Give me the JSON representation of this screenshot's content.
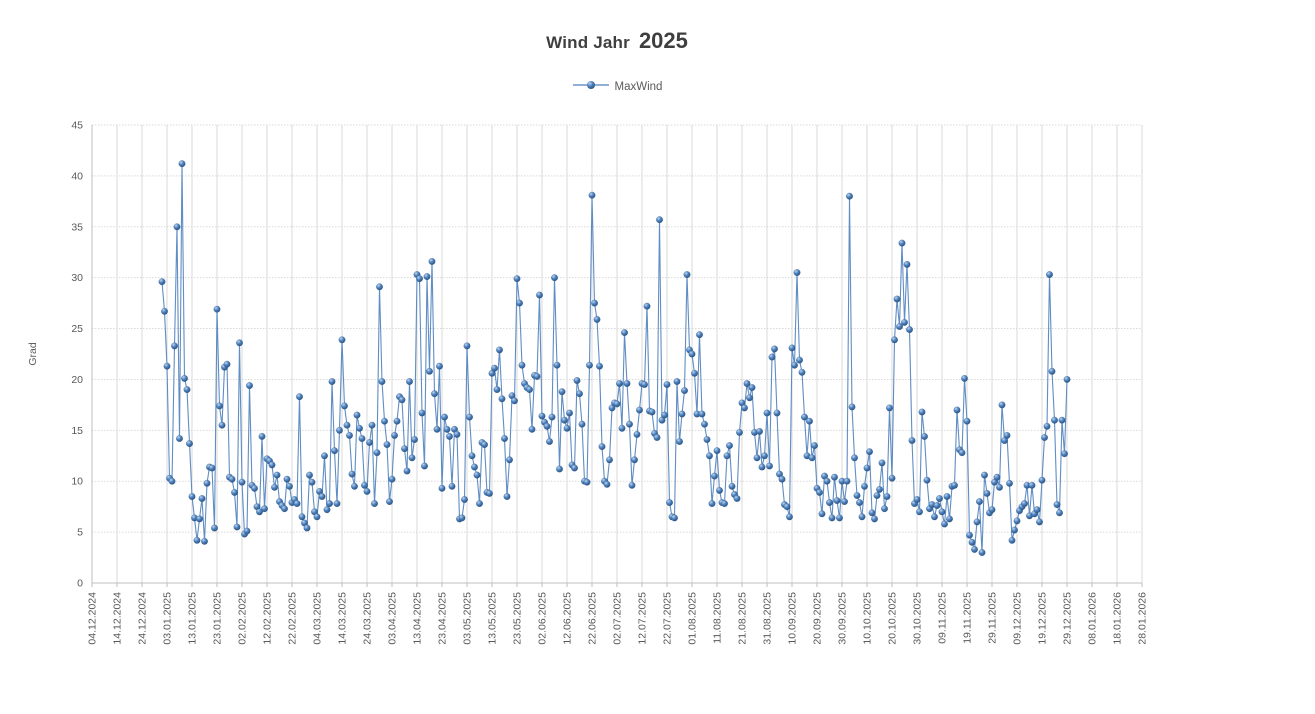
{
  "title": {
    "part1": "Wind Jahr",
    "year": "2025"
  },
  "legend": {
    "label": "MaxWind"
  },
  "y_axis": {
    "label": "Grad"
  },
  "chart_data": {
    "type": "line",
    "title": "Wind Jahr 2025",
    "series_name": "MaxWind",
    "xlabel": "",
    "ylabel": "Grad",
    "ylim": [
      0,
      45
    ],
    "y_tick_step": 5,
    "grid": true,
    "legend_position": "top",
    "marker_style": "3d-sphere",
    "x_start_date": "01.01.2025",
    "x_frequency": "daily",
    "x_offset_days": 28,
    "x_tick_interval_days": 10,
    "x_tick_labels": [
      "04.12.2024",
      "14.12.2024",
      "24.12.2024",
      "03.01.2025",
      "13.01.2025",
      "23.01.2025",
      "02.02.2025",
      "12.02.2025",
      "22.02.2025",
      "04.03.2025",
      "14.03.2025",
      "24.03.2025",
      "03.04.2025",
      "13.04.2025",
      "23.04.2025",
      "03.05.2025",
      "13.05.2025",
      "23.05.2025",
      "02.06.2025",
      "12.06.2025",
      "22.06.2025",
      "02.07.2025",
      "12.07.2025",
      "22.07.2025",
      "01.08.2025",
      "11.08.2025",
      "21.08.2025",
      "31.08.2025",
      "10.09.2025",
      "20.09.2025",
      "30.09.2025",
      "10.10.2025",
      "20.10.2025",
      "30.10.2025",
      "09.11.2025",
      "19.11.2025",
      "29.11.2025",
      "09.12.2025",
      "19.12.2025",
      "29.12.2025",
      "08.01.2026",
      "18.01.2026",
      "28.01.2026"
    ],
    "values": [
      29.6,
      26.7,
      21.3,
      10.3,
      10.0,
      23.3,
      35.0,
      14.2,
      41.2,
      20.1,
      19.0,
      13.7,
      8.5,
      6.4,
      4.2,
      6.3,
      8.3,
      4.1,
      9.8,
      11.4,
      11.3,
      5.4,
      26.9,
      17.4,
      15.5,
      21.2,
      21.5,
      10.4,
      10.2,
      8.9,
      5.5,
      23.6,
      9.9,
      4.8,
      5.1,
      19.4,
      9.6,
      9.3,
      7.5,
      7.0,
      14.4,
      7.3,
      12.2,
      12.0,
      11.6,
      9.4,
      10.6,
      8.0,
      7.6,
      7.3,
      10.2,
      9.5,
      7.9,
      8.2,
      7.8,
      18.3,
      6.5,
      5.9,
      5.4,
      10.6,
      9.9,
      7.0,
      6.5,
      9.0,
      8.5,
      12.5,
      7.2,
      7.8,
      19.8,
      13.0,
      7.8,
      15.0,
      23.9,
      17.4,
      15.5,
      14.5,
      10.7,
      9.5,
      16.5,
      15.2,
      14.2,
      9.6,
      9.0,
      13.8,
      15.5,
      7.8,
      12.8,
      29.1,
      19.8,
      15.9,
      13.6,
      8.0,
      10.2,
      14.5,
      15.9,
      18.3,
      18.0,
      13.2,
      11.0,
      19.8,
      12.3,
      14.1,
      30.3,
      29.9,
      16.7,
      11.5,
      30.1,
      20.8,
      31.6,
      18.6,
      15.1,
      21.3,
      9.3,
      16.3,
      15.1,
      14.4,
      9.5,
      15.1,
      14.6,
      6.3,
      6.4,
      8.2,
      23.3,
      16.3,
      12.5,
      11.4,
      10.6,
      7.8,
      13.8,
      13.6,
      8.9,
      8.8,
      20.6,
      21.1,
      19.0,
      22.9,
      18.1,
      14.2,
      8.5,
      12.1,
      18.4,
      17.9,
      29.9,
      27.5,
      21.4,
      19.6,
      19.2,
      19.0,
      15.1,
      20.4,
      20.3,
      28.3,
      16.4,
      15.8,
      15.4,
      13.9,
      16.3,
      30.0,
      21.4,
      11.2,
      18.8,
      16.0,
      15.2,
      16.7,
      11.6,
      11.3,
      19.9,
      18.6,
      15.6,
      10.0,
      9.9,
      21.4,
      38.1,
      27.5,
      25.9,
      21.3,
      13.4,
      10.0,
      9.7,
      12.1,
      17.2,
      17.7,
      17.6,
      19.6,
      15.2,
      24.6,
      19.6,
      15.6,
      9.6,
      12.1,
      14.6,
      17.0,
      19.6,
      19.5,
      27.2,
      16.9,
      16.8,
      14.7,
      14.3,
      35.7,
      16.0,
      16.5,
      19.5,
      7.9,
      6.5,
      6.4,
      19.8,
      13.9,
      16.6,
      18.9,
      30.3,
      22.9,
      22.5,
      20.6,
      16.6,
      24.4,
      16.6,
      15.6,
      14.1,
      12.5,
      7.8,
      10.5,
      13.0,
      9.1,
      7.9,
      7.8,
      12.5,
      13.5,
      9.5,
      8.7,
      8.3,
      14.8,
      17.7,
      17.2,
      19.6,
      18.2,
      19.2,
      14.8,
      12.3,
      14.9,
      11.4,
      12.5,
      16.7,
      11.5,
      22.2,
      23.0,
      16.7,
      10.7,
      10.2,
      7.7,
      7.5,
      6.5,
      23.1,
      21.4,
      30.5,
      21.9,
      20.7,
      16.3,
      12.5,
      15.9,
      12.3,
      13.5,
      9.3,
      8.9,
      6.8,
      10.5,
      10.0,
      7.9,
      6.4,
      10.4,
      8.1,
      6.4,
      10.0,
      8.0,
      10.0,
      38.0,
      17.3,
      12.3,
      8.6,
      7.9,
      6.5,
      9.5,
      11.3,
      12.9,
      6.9,
      6.3,
      8.6,
      9.2,
      11.8,
      7.3,
      8.5,
      17.2,
      10.3,
      23.9,
      27.9,
      25.2,
      33.4,
      25.6,
      31.3,
      24.9,
      14.0,
      7.8,
      8.2,
      7.0,
      16.8,
      14.4,
      10.1,
      7.3,
      7.7,
      6.5,
      7.6,
      8.3,
      7.0,
      5.8,
      8.5,
      6.3,
      9.5,
      9.6,
      17.0,
      13.1,
      12.8,
      20.1,
      15.9,
      4.7,
      4.0,
      3.3,
      6.0,
      8.0,
      3.0,
      10.6,
      8.8,
      6.9,
      7.2,
      9.9,
      10.4,
      9.4,
      17.5,
      14.0,
      14.5,
      9.8,
      4.2,
      5.2,
      6.1,
      7.1,
      7.5,
      7.8,
      9.6,
      6.6,
      9.6,
      6.8,
      7.2,
      6.0,
      10.1,
      14.3,
      15.4,
      30.3,
      20.8,
      16.0,
      7.7,
      6.9,
      16.0,
      12.7,
      20.0
    ],
    "colors": {
      "line": "#4f81bd",
      "marker_light": "#bcd5ef",
      "marker_mid": "#4f81bd",
      "marker_dark": "#26507f",
      "grid": "#d9d9d9",
      "axis": "#bfbfbf",
      "tick_text": "#595959",
      "title_text": "#3f3f3f"
    }
  }
}
